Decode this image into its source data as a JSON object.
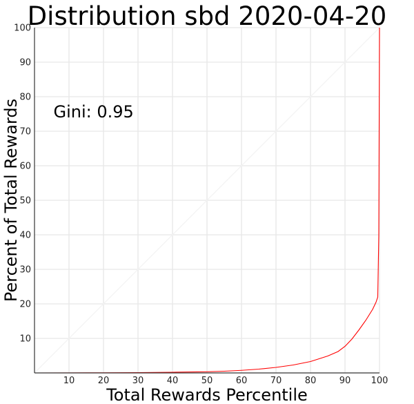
{
  "chart_data": {
    "type": "line",
    "title": "Distribution sbd 2020-04-20",
    "xlabel": "Total Rewards Percentile",
    "ylabel": "Percent of Total Rewards",
    "xlim": [
      0,
      100
    ],
    "ylim": [
      0,
      100
    ],
    "xticks": [
      10,
      20,
      30,
      40,
      50,
      60,
      70,
      80,
      90,
      100
    ],
    "yticks": [
      10,
      20,
      30,
      40,
      50,
      60,
      70,
      80,
      90,
      100
    ],
    "grid": true,
    "annotations": [
      {
        "text": "Gini: 0.95",
        "x": 5.5,
        "y": 74
      }
    ],
    "series": [
      {
        "color": "#f3f3f3",
        "x": [
          0,
          100
        ],
        "y": [
          0,
          100
        ]
      },
      {
        "color": "#ff0000",
        "x": [
          0,
          10,
          20,
          30,
          40,
          50,
          55,
          60,
          65,
          70,
          75,
          80,
          85,
          88,
          90,
          92,
          94,
          96,
          98,
          99,
          99.5,
          99.8,
          100
        ],
        "y": [
          0,
          0.02,
          0.05,
          0.1,
          0.2,
          0.35,
          0.5,
          0.75,
          1.1,
          1.6,
          2.3,
          3.3,
          4.9,
          6.2,
          7.7,
          9.8,
          12.4,
          15.2,
          18.4,
          20.5,
          22.0,
          40.0,
          100
        ]
      }
    ]
  }
}
